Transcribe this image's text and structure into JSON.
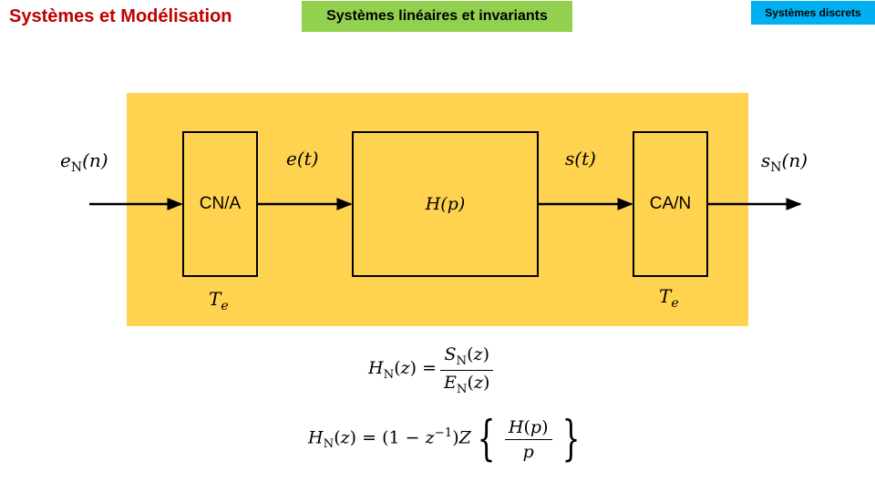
{
  "header": {
    "title": "Systèmes et Modélisation",
    "section": "Systèmes linéaires et invariants",
    "tag": "Systèmes discrets"
  },
  "colors": {
    "title": "#c00000",
    "section_bg": "#92d050",
    "tag_bg": "#00b0f0",
    "panel": "#ffd34f"
  },
  "diagram": {
    "blocks": {
      "cna": "CN/A",
      "transfer_fn": "p",
      "can": "CA/N"
    },
    "signals": {
      "input": "n",
      "analog_in": "t",
      "analog_out": "t",
      "output": "n"
    },
    "sampling_period": "e"
  },
  "formulas": {
    "f1_lhs": "z",
    "f1_num": "z",
    "f1_den": "z",
    "f2_lhs": "z",
    "f2_exp": "−1",
    "f2_num": "p",
    "f2_den": "p"
  }
}
